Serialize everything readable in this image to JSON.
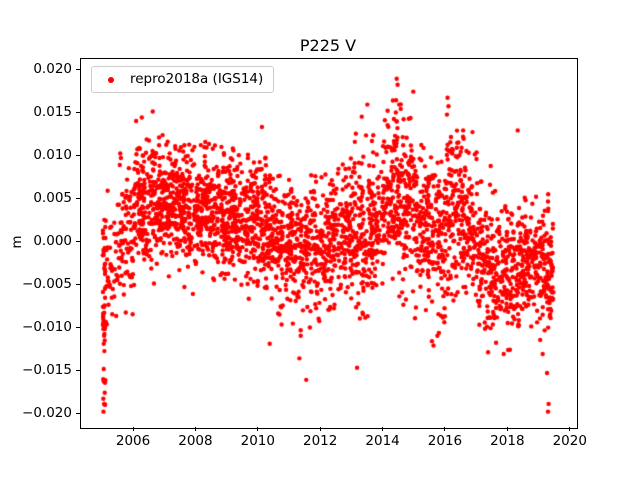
{
  "chart_data": {
    "type": "scatter",
    "title": "P225 V",
    "xlabel": "",
    "ylabel": "m",
    "xlim": [
      2004.3,
      2020.2
    ],
    "ylim": [
      -0.0216,
      0.0213
    ],
    "grid": false,
    "xticks": [
      {
        "value": 2006,
        "label": "2006"
      },
      {
        "value": 2008,
        "label": "2008"
      },
      {
        "value": 2010,
        "label": "2010"
      },
      {
        "value": 2012,
        "label": "2012"
      },
      {
        "value": 2014,
        "label": "2014"
      },
      {
        "value": 2016,
        "label": "2016"
      },
      {
        "value": 2018,
        "label": "2018"
      },
      {
        "value": 2020,
        "label": "2020"
      }
    ],
    "yticks": [
      {
        "value": -0.02,
        "label": "−0.020"
      },
      {
        "value": -0.015,
        "label": "−0.015"
      },
      {
        "value": -0.01,
        "label": "−0.010"
      },
      {
        "value": -0.005,
        "label": "−0.005"
      },
      {
        "value": 0.0,
        "label": "0.000"
      },
      {
        "value": 0.005,
        "label": "0.005"
      },
      {
        "value": 0.01,
        "label": "0.010"
      },
      {
        "value": 0.015,
        "label": "0.015"
      },
      {
        "value": 0.02,
        "label": "0.020"
      }
    ],
    "legend": {
      "position": "upper-left",
      "entries": [
        {
          "label": "repro2018a (IGS14)",
          "color": "#ff0000",
          "marker": "circle"
        }
      ]
    },
    "series": [
      {
        "name": "repro2018a (IGS14)",
        "color": "#ff0000",
        "marker": ".",
        "marker_radius_px": 2.2,
        "point_generation": {
          "seed": 42,
          "note": "Dense daily GPS vertical time series (m) approximated by per-interval gaussian envelopes read from the plot. bins: [t_start, width_yr, n_points, mean, sd, min, max]",
          "bins": [
            [
              2005.0,
              0.1,
              50,
              -0.006,
              0.007,
              -0.0198,
              0.004
            ],
            [
              2005.1,
              0.4,
              40,
              -0.002,
              0.004,
              -0.013,
              0.006
            ],
            [
              2005.5,
              0.5,
              80,
              0.001,
              0.004,
              -0.009,
              0.0135
            ],
            [
              2006.0,
              0.5,
              120,
              0.004,
              0.0035,
              -0.006,
              0.015
            ],
            [
              2006.5,
              0.5,
              130,
              0.0045,
              0.0035,
              -0.005,
              0.0145
            ],
            [
              2007.0,
              0.5,
              130,
              0.004,
              0.0035,
              -0.006,
              0.013
            ],
            [
              2007.5,
              0.5,
              130,
              0.0035,
              0.0035,
              -0.007,
              0.0125
            ],
            [
              2008.0,
              0.5,
              130,
              0.004,
              0.0035,
              -0.005,
              0.013
            ],
            [
              2008.5,
              0.5,
              130,
              0.0035,
              0.0035,
              -0.006,
              0.0135
            ],
            [
              2009.0,
              0.5,
              130,
              0.003,
              0.0035,
              -0.006,
              0.011
            ],
            [
              2009.5,
              0.5,
              120,
              0.003,
              0.004,
              -0.008,
              0.011
            ],
            [
              2010.0,
              0.5,
              120,
              0.002,
              0.004,
              -0.009,
              0.0105
            ],
            [
              2010.5,
              0.5,
              110,
              0.0,
              0.004,
              -0.01,
              0.008
            ],
            [
              2011.0,
              0.5,
              110,
              -0.001,
              0.004,
              -0.011,
              0.007
            ],
            [
              2011.5,
              0.5,
              110,
              -0.001,
              0.004,
              -0.016,
              0.008
            ],
            [
              2012.0,
              0.5,
              110,
              0.0,
              0.004,
              -0.009,
              0.009
            ],
            [
              2012.5,
              0.5,
              110,
              0.001,
              0.004,
              -0.008,
              0.01
            ],
            [
              2013.0,
              0.5,
              110,
              0.001,
              0.0045,
              -0.0145,
              0.016
            ],
            [
              2013.5,
              0.5,
              115,
              0.003,
              0.004,
              -0.006,
              0.013
            ],
            [
              2014.0,
              0.5,
              125,
              0.006,
              0.004,
              -0.005,
              0.0165
            ],
            [
              2014.5,
              0.5,
              120,
              0.005,
              0.005,
              -0.008,
              0.019
            ],
            [
              2015.0,
              0.5,
              115,
              0.002,
              0.004,
              -0.009,
              0.012
            ],
            [
              2015.5,
              0.5,
              110,
              0.001,
              0.0045,
              -0.012,
              0.01
            ],
            [
              2016.0,
              0.5,
              120,
              0.004,
              0.005,
              -0.007,
              0.017
            ],
            [
              2016.5,
              0.5,
              110,
              0.002,
              0.0045,
              -0.009,
              0.013
            ],
            [
              2017.0,
              0.5,
              105,
              -0.002,
              0.0045,
              -0.013,
              0.009
            ],
            [
              2017.5,
              0.5,
              105,
              -0.004,
              0.004,
              -0.013,
              0.006
            ],
            [
              2018.0,
              0.5,
              105,
              -0.003,
              0.004,
              -0.012,
              0.013
            ],
            [
              2018.5,
              0.5,
              105,
              -0.002,
              0.004,
              -0.01,
              0.008
            ],
            [
              2019.0,
              0.3,
              70,
              -0.003,
              0.004,
              -0.0198,
              0.006
            ],
            [
              2019.3,
              0.15,
              40,
              -0.004,
              0.003,
              -0.0095,
              0.003
            ]
          ],
          "outliers": [
            [
              2005.02,
              -0.0197
            ],
            [
              2005.04,
              -0.0188
            ],
            [
              2005.06,
              -0.0175
            ],
            [
              2005.03,
              -0.0162
            ],
            [
              2006.25,
              0.0145
            ],
            [
              2006.6,
              0.0152
            ],
            [
              2010.1,
              0.0134
            ],
            [
              2010.35,
              -0.0118
            ],
            [
              2011.3,
              -0.0135
            ],
            [
              2011.52,
              -0.016
            ],
            [
              2013.15,
              -0.0146
            ],
            [
              2013.3,
              0.0146
            ],
            [
              2013.48,
              0.016
            ],
            [
              2014.4,
              0.0165
            ],
            [
              2014.42,
              0.019
            ],
            [
              2014.45,
              0.0183
            ],
            [
              2014.5,
              0.016
            ],
            [
              2014.55,
              0.0155
            ],
            [
              2015.55,
              -0.0115
            ],
            [
              2015.6,
              -0.012
            ],
            [
              2016.05,
              0.0168
            ],
            [
              2016.08,
              0.0158
            ],
            [
              2016.55,
              0.013
            ],
            [
              2016.85,
              0.0128
            ],
            [
              2017.35,
              -0.0128
            ],
            [
              2017.85,
              -0.013
            ],
            [
              2018.05,
              -0.0125
            ],
            [
              2018.3,
              0.013
            ],
            [
              2019.1,
              -0.013
            ],
            [
              2019.24,
              -0.0152
            ],
            [
              2019.27,
              -0.0197
            ],
            [
              2019.29,
              -0.0188
            ]
          ]
        }
      }
    ]
  }
}
